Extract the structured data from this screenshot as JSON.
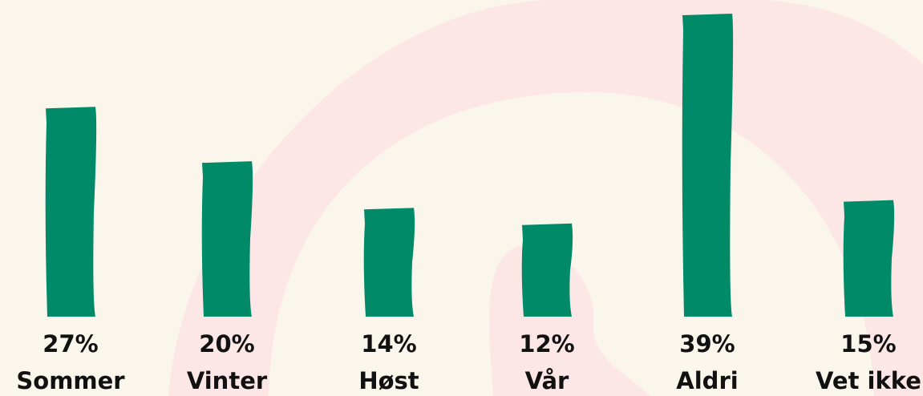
{
  "chart_data": {
    "type": "bar",
    "categories": [
      "Sommer",
      "Vinter",
      "Høst",
      "Vår",
      "Aldri",
      "Vet ikke"
    ],
    "values": [
      27,
      20,
      14,
      12,
      39,
      15
    ],
    "value_labels": [
      "27%",
      "20%",
      "14%",
      "12%",
      "39%",
      "15%"
    ],
    "color": "#008a68"
  }
}
